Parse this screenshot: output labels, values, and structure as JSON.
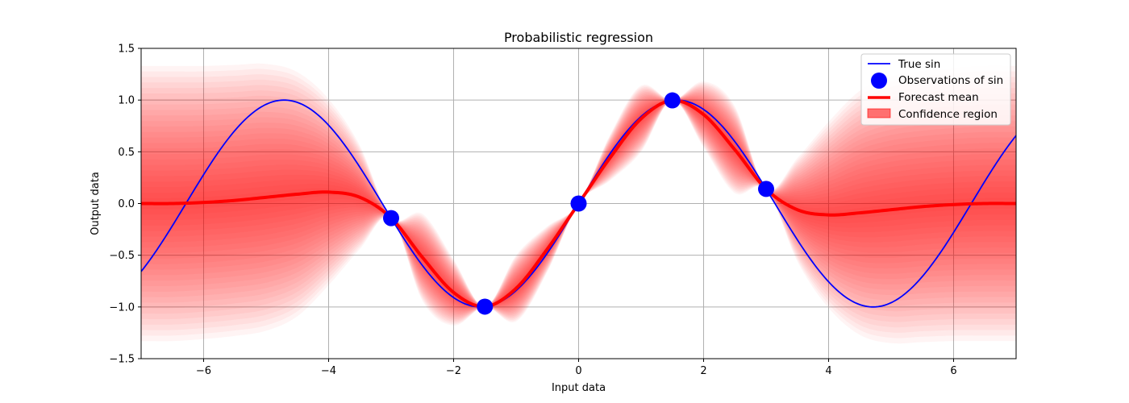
{
  "chart_data": {
    "type": "line",
    "title": "Probabilistic regression",
    "xlabel": "Input data",
    "ylabel": "Output data",
    "xlim": [
      -7,
      7
    ],
    "ylim": [
      -1.5,
      1.5
    ],
    "xticks": [
      -6,
      -4,
      -2,
      0,
      2,
      4,
      6
    ],
    "yticks": [
      -1.5,
      -1.0,
      -0.5,
      0.0,
      0.5,
      1.0,
      1.5
    ],
    "xtick_labels": [
      "−6",
      "−4",
      "−2",
      "0",
      "2",
      "4",
      "6"
    ],
    "ytick_labels": [
      "−1.5",
      "−1.0",
      "−0.5",
      "0.0",
      "0.5",
      "1.0",
      "1.5"
    ],
    "grid": true,
    "legend_position": "top-right",
    "series": [
      {
        "name": "True sin",
        "kind": "line",
        "color": "#0000ff",
        "function": "sin(x)"
      },
      {
        "name": "Observations of sin",
        "kind": "scatter",
        "color": "#0000ff",
        "x": [
          -3.0,
          -1.5,
          0.0,
          1.5,
          3.0
        ],
        "y": [
          -0.141,
          -0.997,
          0.0,
          0.997,
          0.141
        ]
      },
      {
        "name": "Forecast mean",
        "kind": "line",
        "color": "#ff0000",
        "x": [
          -7,
          -6.5,
          -6,
          -5.5,
          -5,
          -4.5,
          -4,
          -3.5,
          -3,
          -2.5,
          -2,
          -1.5,
          -1,
          -0.5,
          0,
          0.5,
          1,
          1.5,
          2,
          2.5,
          3,
          3.5,
          4,
          4.5,
          5,
          5.5,
          6,
          6.5,
          7
        ],
        "y": [
          0.0,
          0.0,
          0.01,
          0.03,
          0.06,
          0.09,
          0.11,
          0.06,
          -0.14,
          -0.52,
          -0.86,
          -0.997,
          -0.82,
          -0.44,
          0.0,
          0.44,
          0.82,
          0.997,
          0.86,
          0.52,
          0.14,
          -0.06,
          -0.11,
          -0.09,
          -0.06,
          -0.03,
          -0.01,
          0.0,
          0.0
        ]
      },
      {
        "name": "Confidence region",
        "kind": "area",
        "color": "#ff0000",
        "x": [
          -7,
          -6.5,
          -6,
          -5.5,
          -5,
          -4.5,
          -4,
          -3.5,
          -3,
          -2.5,
          -2,
          -1.5,
          -1,
          -0.5,
          0,
          0.5,
          1,
          1.5,
          2,
          2.5,
          3,
          3.5,
          4,
          4.5,
          5,
          5.5,
          6,
          6.5,
          7
        ],
        "half_width": [
          1.33,
          1.33,
          1.32,
          1.31,
          1.29,
          1.18,
          0.9,
          0.5,
          0.0,
          0.42,
          0.32,
          0.0,
          0.32,
          0.22,
          0.0,
          0.22,
          0.32,
          0.0,
          0.32,
          0.42,
          0.0,
          0.5,
          0.9,
          1.18,
          1.29,
          1.31,
          1.32,
          1.33,
          1.33
        ]
      }
    ]
  }
}
